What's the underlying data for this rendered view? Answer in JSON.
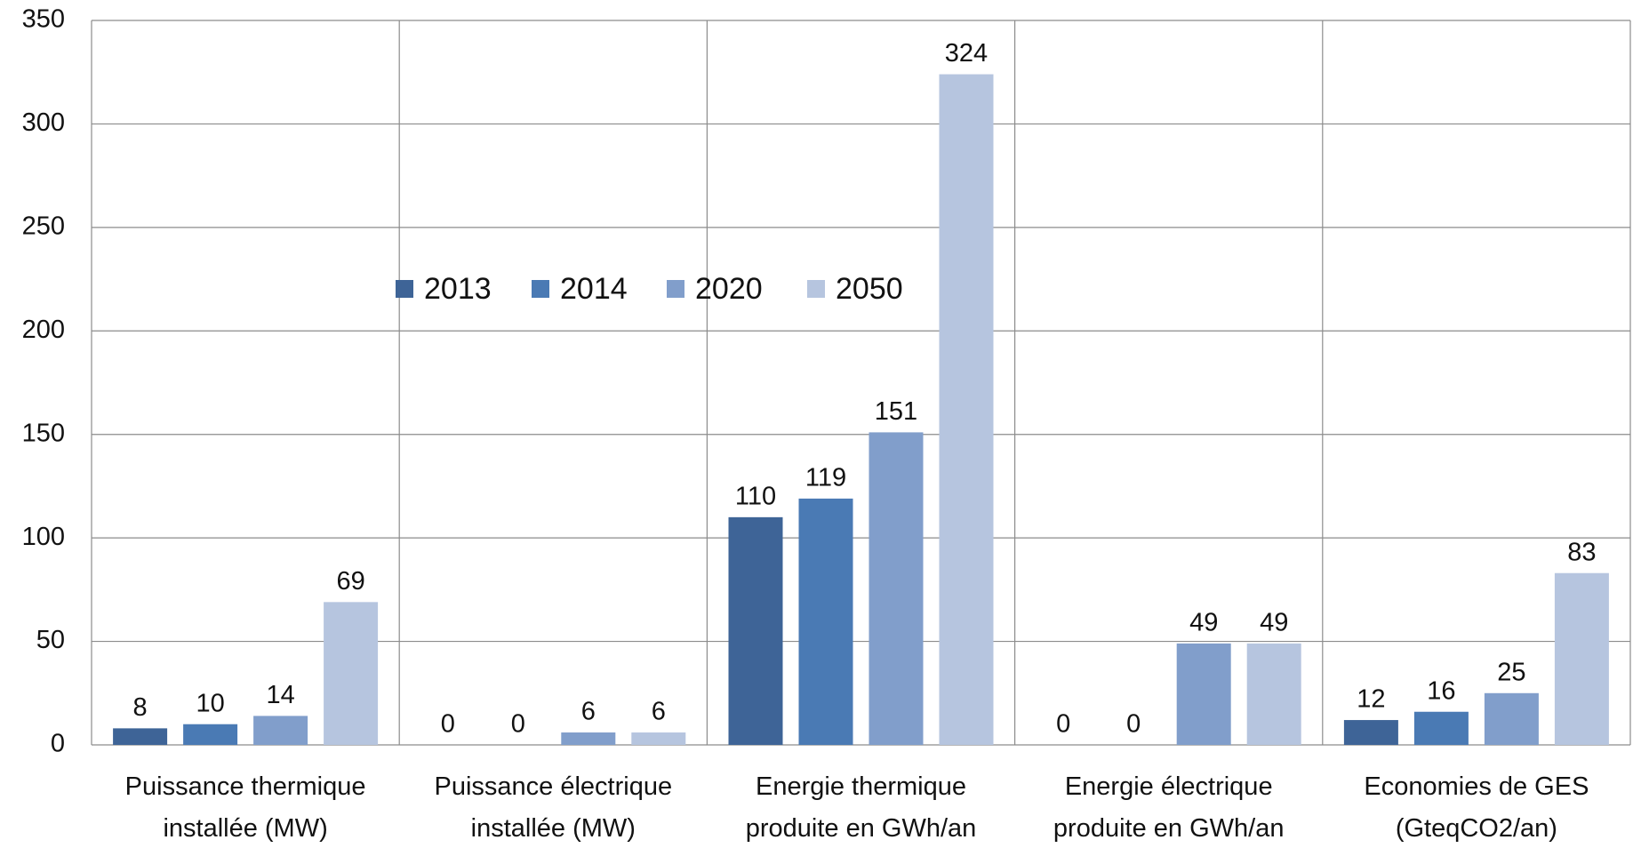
{
  "chart_data": {
    "type": "bar",
    "categories": [
      "Puissance thermique installée (MW)",
      "Puissance électrique installée (MW)",
      "Energie thermique produite en GWh/an",
      "Energie électrique produite en GWh/an",
      "Economies de GES (GteqCO2/an)"
    ],
    "series": [
      {
        "name": "2013",
        "color": "#3e6497",
        "values": [
          8,
          0,
          110,
          0,
          12
        ]
      },
      {
        "name": "2014",
        "color": "#4a7ab4",
        "values": [
          10,
          0,
          119,
          0,
          16
        ]
      },
      {
        "name": "2020",
        "color": "#819ecb",
        "values": [
          14,
          6,
          151,
          49,
          25
        ]
      },
      {
        "name": "2050",
        "color": "#b6c5df",
        "values": [
          69,
          6,
          324,
          49,
          83
        ]
      }
    ],
    "ylim": [
      0,
      350
    ],
    "yticks": [
      0,
      50,
      100,
      150,
      200,
      250,
      300,
      350
    ],
    "grid": true,
    "legend": "top"
  }
}
